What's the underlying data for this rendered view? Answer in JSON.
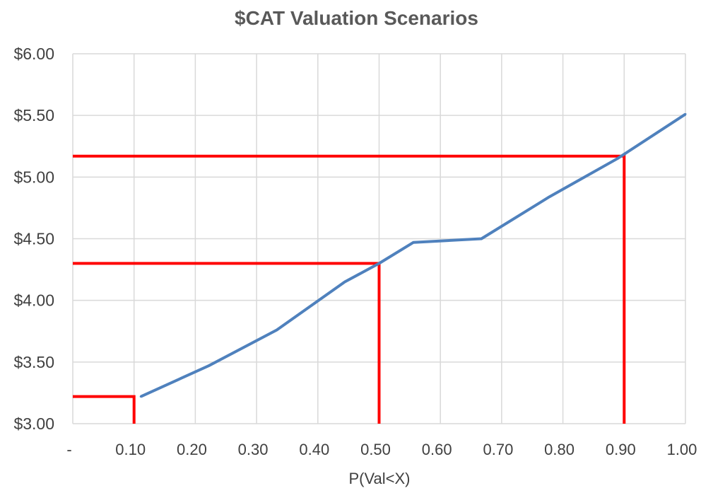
{
  "chart_data": {
    "type": "line",
    "title": "$CAT Valuation Scenarios",
    "xlabel": "P(Val<X)",
    "ylabel": "",
    "xlim": [
      0,
      1.0
    ],
    "ylim": [
      3.0,
      6.0
    ],
    "x_ticks": [
      0,
      0.1,
      0.2,
      0.3,
      0.4,
      0.5,
      0.6,
      0.7,
      0.8,
      0.9,
      1.0
    ],
    "x_tick_labels": [
      "-",
      "0.10",
      "0.20",
      "0.30",
      "0.40",
      "0.50",
      "0.60",
      "0.70",
      "0.80",
      "0.90",
      "1.00"
    ],
    "y_ticks": [
      3.0,
      3.5,
      4.0,
      4.5,
      5.0,
      5.5,
      6.0
    ],
    "y_tick_labels": [
      "$3.00",
      "$3.50",
      "$4.00",
      "$4.50",
      "$5.00",
      "$5.50",
      "$6.00"
    ],
    "grid": true,
    "legend": "none",
    "series": [
      {
        "color": "#4f81bd",
        "x": [
          0.111,
          0.222,
          0.333,
          0.444,
          0.5,
          0.556,
          0.667,
          0.778,
          0.889,
          1.0
        ],
        "y": [
          3.22,
          3.47,
          3.76,
          4.15,
          4.3,
          4.47,
          4.5,
          4.84,
          5.15,
          5.51
        ]
      }
    ],
    "reference_lines": [
      {
        "color": "#ff0000",
        "x": 0.1,
        "y": 3.22
      },
      {
        "color": "#ff0000",
        "x": 0.5,
        "y": 4.3
      },
      {
        "color": "#ff0000",
        "x": 0.9,
        "y": 5.17
      }
    ]
  }
}
